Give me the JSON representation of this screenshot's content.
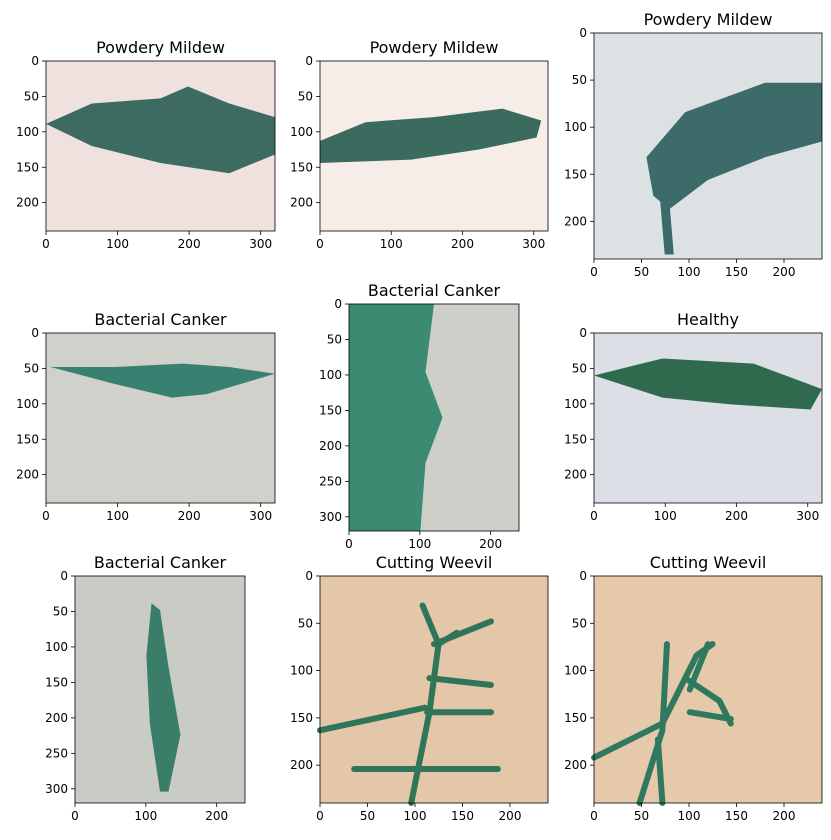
{
  "chart_data": [
    {
      "type": "image",
      "title": "Powdery Mildew",
      "xlim": [
        0,
        320
      ],
      "ylim": [
        240,
        0
      ],
      "xticks": [
        0,
        100,
        200,
        300
      ],
      "yticks": [
        0,
        50,
        100,
        150,
        200
      ]
    },
    {
      "type": "image",
      "title": "Powdery Mildew",
      "xlim": [
        0,
        320
      ],
      "ylim": [
        240,
        0
      ],
      "xticks": [
        0,
        100,
        200,
        300
      ],
      "yticks": [
        0,
        50,
        100,
        150,
        200
      ]
    },
    {
      "type": "image",
      "title": "Powdery Mildew",
      "xlim": [
        0,
        240
      ],
      "ylim": [
        240,
        0
      ],
      "xticks": [
        0,
        50,
        100,
        150,
        200
      ],
      "yticks": [
        0,
        50,
        100,
        150,
        200
      ]
    },
    {
      "type": "image",
      "title": "Bacterial Canker",
      "xlim": [
        0,
        320
      ],
      "ylim": [
        240,
        0
      ],
      "xticks": [
        0,
        100,
        200,
        300
      ],
      "yticks": [
        0,
        50,
        100,
        150,
        200
      ]
    },
    {
      "type": "image",
      "title": "Bacterial Canker",
      "xlim": [
        0,
        240
      ],
      "ylim": [
        320,
        0
      ],
      "xticks": [
        0,
        100,
        200
      ],
      "yticks": [
        0,
        50,
        100,
        150,
        200,
        250,
        300
      ]
    },
    {
      "type": "image",
      "title": "Healthy",
      "xlim": [
        0,
        320
      ],
      "ylim": [
        240,
        0
      ],
      "xticks": [
        0,
        100,
        200,
        300
      ],
      "yticks": [
        0,
        50,
        100,
        150,
        200
      ]
    },
    {
      "type": "image",
      "title": "Bacterial Canker",
      "xlim": [
        0,
        240
      ],
      "ylim": [
        320,
        0
      ],
      "xticks": [
        0,
        100,
        200
      ],
      "yticks": [
        0,
        50,
        100,
        150,
        200,
        250,
        300
      ]
    },
    {
      "type": "image",
      "title": "Cutting Weevil",
      "xlim": [
        0,
        240
      ],
      "ylim": [
        240,
        0
      ],
      "xticks": [
        0,
        50,
        100,
        150,
        200
      ],
      "yticks": [
        0,
        50,
        100,
        150,
        200
      ]
    },
    {
      "type": "image",
      "title": "Cutting Weevil",
      "xlim": [
        0,
        240
      ],
      "ylim": [
        240,
        0
      ],
      "xticks": [
        0,
        50,
        100,
        150,
        200
      ],
      "yticks": [
        0,
        50,
        100,
        150,
        200
      ]
    }
  ]
}
